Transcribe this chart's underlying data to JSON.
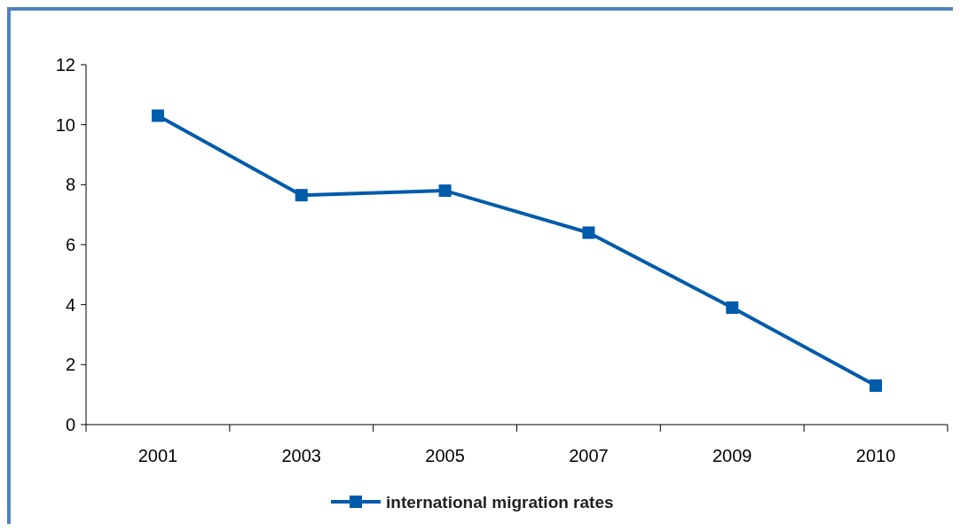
{
  "chart_data": {
    "type": "line",
    "categories": [
      "2001",
      "2003",
      "2005",
      "2007",
      "2009",
      "2010"
    ],
    "series": [
      {
        "name": "international migration rates",
        "color": "#005bab",
        "values": [
          10.3,
          7.65,
          7.8,
          6.4,
          3.9,
          1.3
        ]
      }
    ],
    "ylim": [
      0,
      12
    ],
    "yticks": [
      0,
      2,
      4,
      6,
      8,
      10,
      12
    ],
    "grid": false,
    "legend": "bottom",
    "marker": "square",
    "line_style": "solid"
  }
}
